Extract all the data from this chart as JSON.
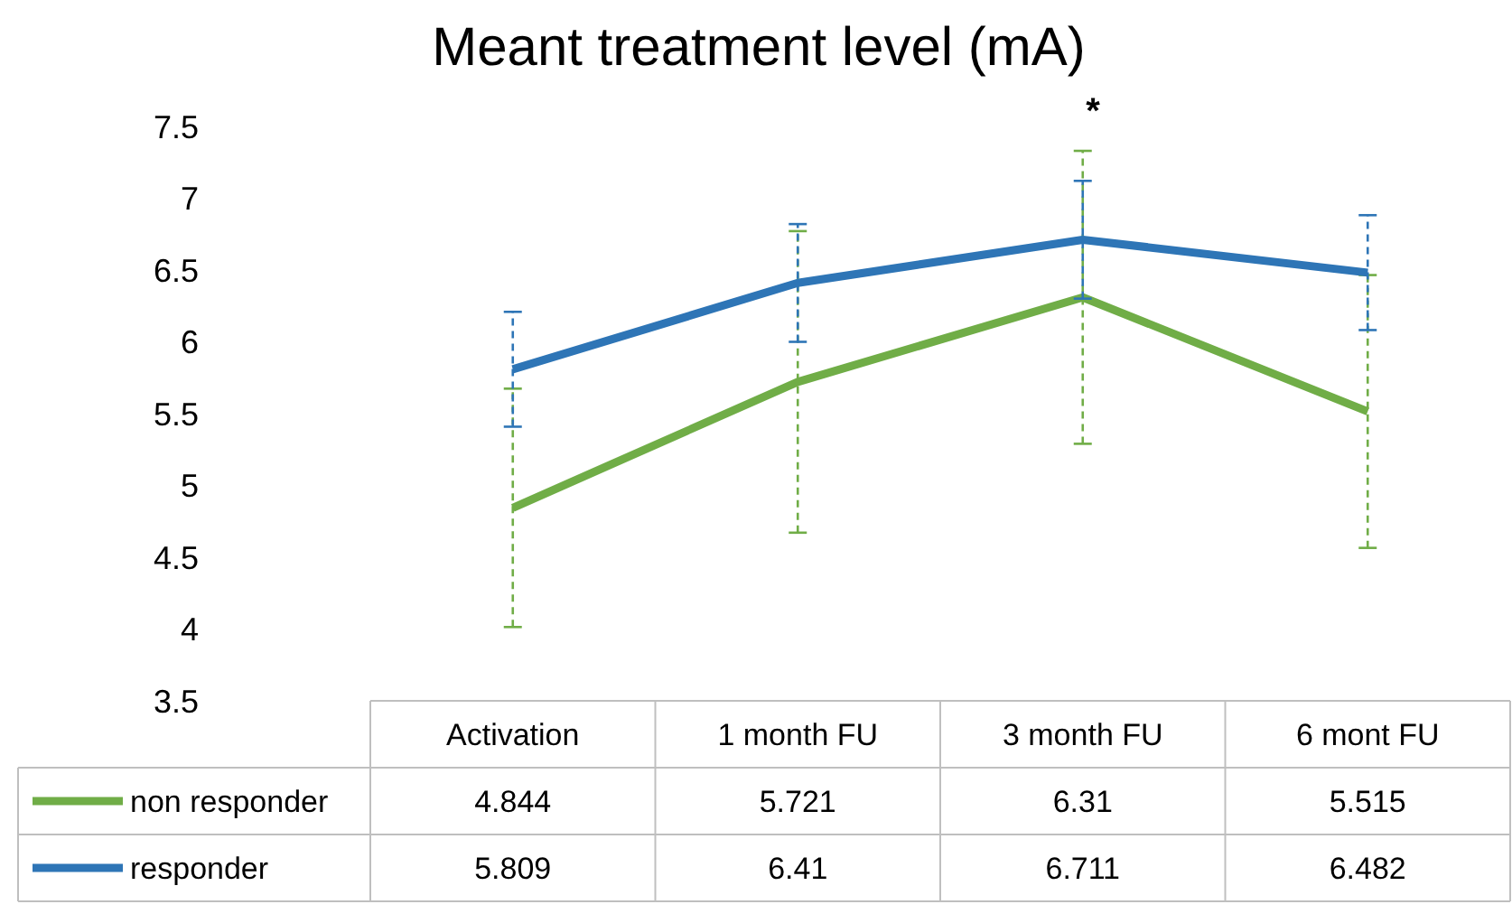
{
  "chart_data": {
    "type": "line",
    "title": "Meant treatment level (mA)",
    "categories": [
      "Activation",
      "1 month FU",
      "3 month FU",
      "6 mont FU"
    ],
    "series": [
      {
        "name": "non responder",
        "color": "#70ad47",
        "values": [
          4.844,
          5.721,
          6.31,
          5.515
        ],
        "errors": [
          0.83,
          1.05,
          1.02,
          0.95
        ]
      },
      {
        "name": "responder",
        "color": "#2e75b6",
        "values": [
          5.809,
          6.41,
          6.711,
          6.482
        ],
        "errors": [
          0.4,
          0.41,
          0.41,
          0.4
        ]
      }
    ],
    "ylim": [
      3.5,
      7.5
    ],
    "yticks": [
      3.5,
      4,
      4.5,
      5,
      5.5,
      6,
      6.5,
      7,
      7.5
    ],
    "grid": false,
    "legend": "bottom",
    "data_labels": true,
    "marker": "none",
    "line_style": "solid",
    "annotations": [
      "*"
    ]
  }
}
